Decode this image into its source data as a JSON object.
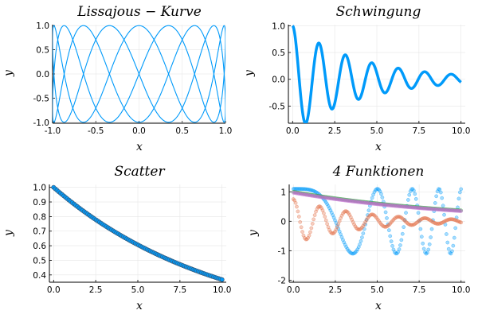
{
  "colors": {
    "blue": "#009AFA",
    "orange": "#E36F47",
    "green": "#3EA44E",
    "purple": "#C371D2",
    "scatter_stroke": "#3A5A78"
  },
  "chart_data": [
    {
      "type": "line",
      "title": "Lissajous − Kurve",
      "xlabel": "x",
      "ylabel": "y",
      "xlim": [
        -1.0,
        1.0
      ],
      "ylim": [
        -1.0,
        1.0
      ],
      "xticks": [
        "-1.0",
        "-0.5",
        "0.0",
        "0.5",
        "1.0"
      ],
      "yticks": [
        "-1.0",
        "-0.5",
        "0.0",
        "0.5",
        "1.0"
      ],
      "grid": true,
      "series": [
        {
          "function": "x = sin(2t), y = sin(9t), t in [0, 2π]",
          "color": "#009AFA"
        }
      ]
    },
    {
      "type": "line",
      "title": "Schwingung",
      "xlabel": "x",
      "ylabel": "y",
      "xlim": [
        0,
        10
      ],
      "ylim": [
        -0.8,
        1.0
      ],
      "xticks": [
        "0.0",
        "2.5",
        "5.0",
        "7.5",
        "10.0"
      ],
      "yticks": [
        "-0.5",
        "0.0",
        "0.5",
        "1.0"
      ],
      "grid": true,
      "series": [
        {
          "function": "y = exp(-0.25x)·cos(4x)",
          "color": "#009AFA"
        }
      ]
    },
    {
      "type": "scatter",
      "title": "Scatter",
      "xlabel": "x",
      "ylabel": "y",
      "xlim": [
        0,
        10
      ],
      "ylim": [
        0.35,
        1.0
      ],
      "xticks": [
        "0.0",
        "2.5",
        "5.0",
        "7.5",
        "10.0"
      ],
      "yticks": [
        "0.4",
        "0.5",
        "0.6",
        "0.7",
        "0.8",
        "0.9",
        "1.0"
      ],
      "grid": true,
      "series": [
        {
          "function": "y = exp(-0.1x), 100 points",
          "color": "#009AFA"
        }
      ]
    },
    {
      "type": "scatter",
      "title": "4 Funktionen",
      "xlabel": "x",
      "ylabel": "y",
      "xlim": [
        0,
        10
      ],
      "ylim": [
        -2,
        1.2
      ],
      "xticks": [
        "0.0",
        "2.5",
        "5.0",
        "7.5",
        "10.0"
      ],
      "yticks": [
        "-2",
        "-1",
        "0",
        "1"
      ],
      "grid": true,
      "series": [
        {
          "function": "y = 1.1·cos(x²/4)",
          "color": "#009AFA"
        },
        {
          "function": "y = exp(-0.25x)·cos(4x)·0.75",
          "color": "#E36F47"
        },
        {
          "function": "y = exp(-0.1x)",
          "color": "#3EA44E"
        },
        {
          "function": "y = 1.1·exp(-0.1x)·0.9",
          "color": "#C371D2"
        }
      ]
    }
  ]
}
